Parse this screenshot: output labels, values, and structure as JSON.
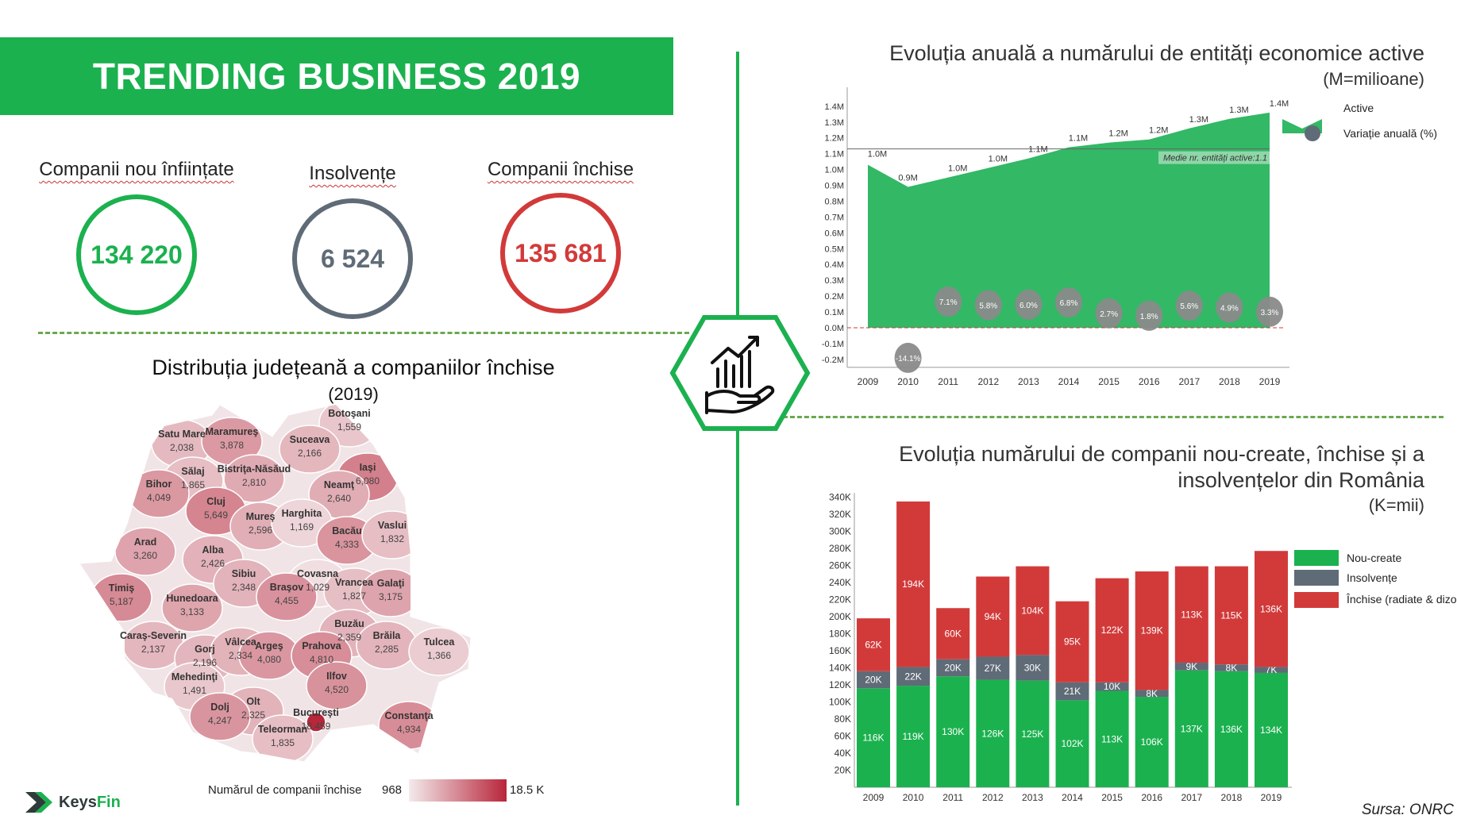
{
  "banner": {
    "title": "TRENDING BUSINESS 2019"
  },
  "kpis": [
    {
      "label": "Companii nou înființate",
      "value": "134 220",
      "color": "#1bb14f"
    },
    {
      "label": "Insolvențe",
      "value": "6 524",
      "color": "#5f6b77"
    },
    {
      "label": "Companii închise",
      "value": "135 681",
      "color": "#d23a3a"
    }
  ],
  "map": {
    "title": "Distribuția județeană a companiilor închise",
    "subtitle": "(2019)",
    "legend_label": "Numărul de companii închise",
    "legend_min": "968",
    "legend_max": "18.5 K",
    "min_value": 968,
    "max_value": 18459,
    "counties": [
      {
        "name": "Botoşani",
        "value": "1,559",
        "n": 1559
      },
      {
        "name": "Satu Mare",
        "value": "2,038",
        "n": 2038
      },
      {
        "name": "Maramureş",
        "value": "3,878",
        "n": 3878
      },
      {
        "name": "Suceava",
        "value": "2,166",
        "n": 2166
      },
      {
        "name": "Sălaj",
        "value": "1,865",
        "n": 1865
      },
      {
        "name": "Bistriţa-Năsăud",
        "value": "2,810",
        "n": 2810
      },
      {
        "name": "Iaşi",
        "value": "6,080",
        "n": 6080
      },
      {
        "name": "Bihor",
        "value": "4,049",
        "n": 4049
      },
      {
        "name": "Neamţ",
        "value": "2,640",
        "n": 2640
      },
      {
        "name": "Cluj",
        "value": "5,649",
        "n": 5649
      },
      {
        "name": "Mureş",
        "value": "2,596",
        "n": 2596
      },
      {
        "name": "Harghita",
        "value": "1,169",
        "n": 1169
      },
      {
        "name": "Bacău",
        "value": "4,333",
        "n": 4333
      },
      {
        "name": "Vaslui",
        "value": "1,832",
        "n": 1832
      },
      {
        "name": "Arad",
        "value": "3,260",
        "n": 3260
      },
      {
        "name": "Alba",
        "value": "2,426",
        "n": 2426
      },
      {
        "name": "Sibiu",
        "value": "2,348",
        "n": 2348
      },
      {
        "name": "Covasna",
        "value": "1,029",
        "n": 1029
      },
      {
        "name": "Vrancea",
        "value": "1,827",
        "n": 1827
      },
      {
        "name": "Galaţi",
        "value": "3,175",
        "n": 3175
      },
      {
        "name": "Timiş",
        "value": "5,187",
        "n": 5187
      },
      {
        "name": "Braşov",
        "value": "4,455",
        "n": 4455
      },
      {
        "name": "Hunedoara",
        "value": "3,133",
        "n": 3133
      },
      {
        "name": "Buzău",
        "value": "2,359",
        "n": 2359
      },
      {
        "name": "Brăila",
        "value": "2,285",
        "n": 2285
      },
      {
        "name": "Caraş-Severin",
        "value": "2,137",
        "n": 2137
      },
      {
        "name": "Tulcea",
        "value": "1,366",
        "n": 1366
      },
      {
        "name": "Gorj",
        "value": "2,196",
        "n": 2196
      },
      {
        "name": "Vâlcea",
        "value": "2,334",
        "n": 2334
      },
      {
        "name": "Argeş",
        "value": "4,080",
        "n": 4080
      },
      {
        "name": "Prahova",
        "value": "4,810",
        "n": 4810
      },
      {
        "name": "Mehedinţi",
        "value": "1,491",
        "n": 1491
      },
      {
        "name": "Ilfov",
        "value": "4,520",
        "n": 4520
      },
      {
        "name": "Olt",
        "value": "2,325",
        "n": 2325
      },
      {
        "name": "Dolj",
        "value": "4,247",
        "n": 4247
      },
      {
        "name": "Bucureşti",
        "value": "18,459",
        "n": 18459
      },
      {
        "name": "Constanţa",
        "value": "4,934",
        "n": 4934
      },
      {
        "name": "Teleorman",
        "value": "1,835",
        "n": 1835
      }
    ]
  },
  "logo": {
    "text_a": "Keys",
    "text_b": "Fin"
  },
  "source": "Sursa: ONRC",
  "chart_data": [
    {
      "type": "area",
      "title": "Evoluția anuală a numărului de entități economice active",
      "subtitle": "(M=milioane)",
      "x": [
        "2009",
        "2010",
        "2011",
        "2012",
        "2013",
        "2014",
        "2015",
        "2016",
        "2017",
        "2018",
        "2019"
      ],
      "y_ticks": [
        "1.4M",
        "1.3M",
        "1.2M",
        "1.1M",
        "1.0M",
        "0.9M",
        "0.8M",
        "0.7M",
        "0.6M",
        "0.5M",
        "0.4M",
        "0.3M",
        "0.2M",
        "0.1M",
        "0.0M",
        "-0.1M",
        "-0.2M"
      ],
      "ylim": [
        -0.25,
        1.45
      ],
      "series": [
        {
          "name": "Active",
          "color": "#33b866",
          "values": [
            1.03,
            0.89,
            0.95,
            1.01,
            1.07,
            1.14,
            1.17,
            1.19,
            1.26,
            1.32,
            1.36
          ],
          "labels": [
            "1.0M",
            "0.9M",
            "1.0M",
            "1.0M",
            "1.1M",
            "1.1M",
            "1.2M",
            "1.2M",
            "1.3M",
            "1.3M",
            "1.4M"
          ]
        },
        {
          "name": "Variație anuală (%)",
          "color": "#8a8a8a",
          "values": [
            null,
            -14.1,
            7.1,
            5.8,
            6.0,
            6.8,
            2.7,
            1.8,
            5.6,
            4.9,
            3.3
          ],
          "labels": [
            "",
            "-14.1%",
            "7.1%",
            "5.8%",
            "6.0%",
            "6.8%",
            "2.7%",
            "1.8%",
            "5.6%",
            "4.9%",
            "3.3%"
          ]
        }
      ],
      "average": {
        "value": 1.13,
        "label": "Medie nr. entități active:1.1"
      },
      "legend": [
        "Active",
        "Variație anuală (%)"
      ],
      "legend_position": "right"
    },
    {
      "type": "bar",
      "stacked": true,
      "title_line1": "Evoluția numărului de companii nou-create, închise și a",
      "title_line2": "insolvențelor din România",
      "subtitle": "(K=mii)",
      "categories": [
        "2009",
        "2010",
        "2011",
        "2012",
        "2013",
        "2014",
        "2015",
        "2016",
        "2017",
        "2018",
        "2019"
      ],
      "y_ticks": [
        "340K",
        "320K",
        "300K",
        "280K",
        "260K",
        "240K",
        "220K",
        "200K",
        "180K",
        "160K",
        "140K",
        "120K",
        "100K",
        "80K",
        "60K",
        "40K",
        "20K"
      ],
      "ylim": [
        0,
        340
      ],
      "series": [
        {
          "name": "Nou-create",
          "color": "#1bb14f",
          "values": [
            116,
            119,
            130,
            126,
            125,
            102,
            113,
            106,
            137,
            136,
            134
          ]
        },
        {
          "name": "Insolvențe",
          "color": "#5f6b77",
          "values": [
            20,
            22,
            20,
            27,
            30,
            21,
            10,
            8,
            9,
            8,
            7
          ]
        },
        {
          "name": "Închise (radiate & dizolvate)",
          "color": "#d23a3a",
          "values": [
            62,
            194,
            60,
            94,
            104,
            95,
            122,
            139,
            113,
            115,
            136
          ]
        }
      ],
      "legend_position": "right"
    }
  ]
}
